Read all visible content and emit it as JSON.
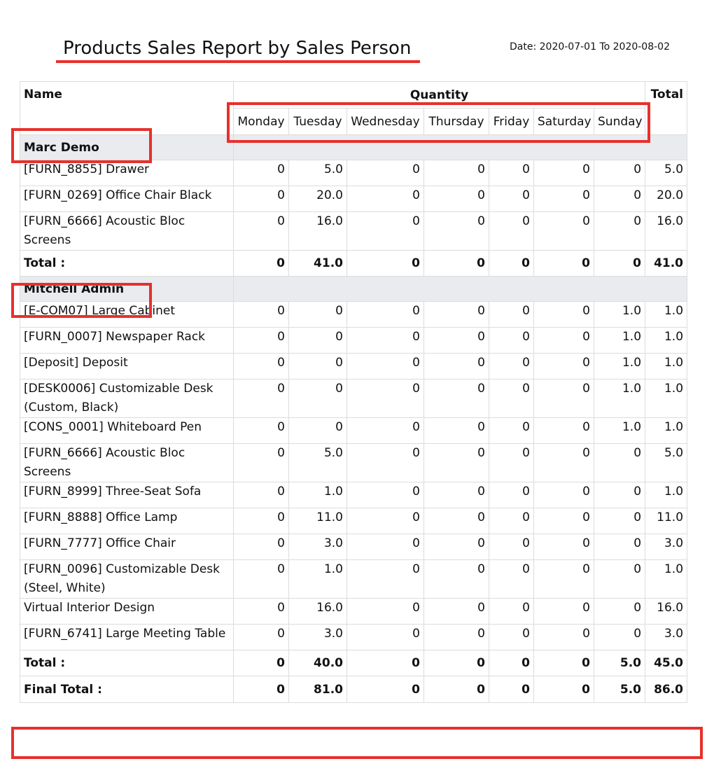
{
  "report": {
    "title": "Products Sales Report by Sales Person",
    "date_range": "Date: 2020-07-01 To 2020-08-02"
  },
  "headers": {
    "name": "Name",
    "quantity": "Quantity",
    "total": "Total",
    "days": [
      "Monday",
      "Tuesday",
      "Wednesday",
      "Thursday",
      "Friday",
      "Saturday",
      "Sunday"
    ]
  },
  "highlight_color": "#e8302b",
  "groups": [
    {
      "name": "Marc Demo",
      "rows": [
        {
          "name": "[FURN_8855] Drawer",
          "values": [
            "0",
            "5.0",
            "0",
            "0",
            "0",
            "0",
            "0",
            "5.0"
          ]
        },
        {
          "name": "[FURN_0269] Office Chair Black",
          "values": [
            "0",
            "20.0",
            "0",
            "0",
            "0",
            "0",
            "0",
            "20.0"
          ]
        },
        {
          "name": "[FURN_6666] Acoustic Bloc Screens",
          "values": [
            "0",
            "16.0",
            "0",
            "0",
            "0",
            "0",
            "0",
            "16.0"
          ]
        }
      ],
      "total_label": "Total :",
      "totals": [
        "0",
        "41.0",
        "0",
        "0",
        "0",
        "0",
        "0",
        "41.0"
      ]
    },
    {
      "name": "Mitchell Admin",
      "rows": [
        {
          "name": "[E-COM07] Large Cabinet",
          "values": [
            "0",
            "0",
            "0",
            "0",
            "0",
            "0",
            "1.0",
            "1.0"
          ]
        },
        {
          "name": "[FURN_0007] Newspaper Rack",
          "values": [
            "0",
            "0",
            "0",
            "0",
            "0",
            "0",
            "1.0",
            "1.0"
          ]
        },
        {
          "name": "[Deposit] Deposit",
          "values": [
            "0",
            "0",
            "0",
            "0",
            "0",
            "0",
            "1.0",
            "1.0"
          ]
        },
        {
          "name": "[DESK0006] Customizable Desk (Custom, Black)",
          "values": [
            "0",
            "0",
            "0",
            "0",
            "0",
            "0",
            "1.0",
            "1.0"
          ]
        },
        {
          "name": "[CONS_0001] Whiteboard Pen",
          "values": [
            "0",
            "0",
            "0",
            "0",
            "0",
            "0",
            "1.0",
            "1.0"
          ]
        },
        {
          "name": "[FURN_6666] Acoustic Bloc Screens",
          "values": [
            "0",
            "5.0",
            "0",
            "0",
            "0",
            "0",
            "0",
            "5.0"
          ]
        },
        {
          "name": "[FURN_8999] Three-Seat Sofa",
          "values": [
            "0",
            "1.0",
            "0",
            "0",
            "0",
            "0",
            "0",
            "1.0"
          ]
        },
        {
          "name": "[FURN_8888] Office Lamp",
          "values": [
            "0",
            "11.0",
            "0",
            "0",
            "0",
            "0",
            "0",
            "11.0"
          ]
        },
        {
          "name": "[FURN_7777] Office Chair",
          "values": [
            "0",
            "3.0",
            "0",
            "0",
            "0",
            "0",
            "0",
            "3.0"
          ]
        },
        {
          "name": "[FURN_0096] Customizable Desk (Steel, White)",
          "values": [
            "0",
            "1.0",
            "0",
            "0",
            "0",
            "0",
            "0",
            "1.0"
          ]
        },
        {
          "name": "Virtual Interior Design",
          "values": [
            "0",
            "16.0",
            "0",
            "0",
            "0",
            "0",
            "0",
            "16.0"
          ]
        },
        {
          "name": "[FURN_6741] Large Meeting Table",
          "values": [
            "0",
            "3.0",
            "0",
            "0",
            "0",
            "0",
            "0",
            "3.0"
          ]
        }
      ],
      "total_label": "Total :",
      "totals": [
        "0",
        "40.0",
        "0",
        "0",
        "0",
        "0",
        "5.0",
        "45.0"
      ]
    }
  ],
  "final": {
    "label": "Final Total :",
    "totals": [
      "0",
      "81.0",
      "0",
      "0",
      "0",
      "0",
      "5.0",
      "86.0"
    ]
  }
}
